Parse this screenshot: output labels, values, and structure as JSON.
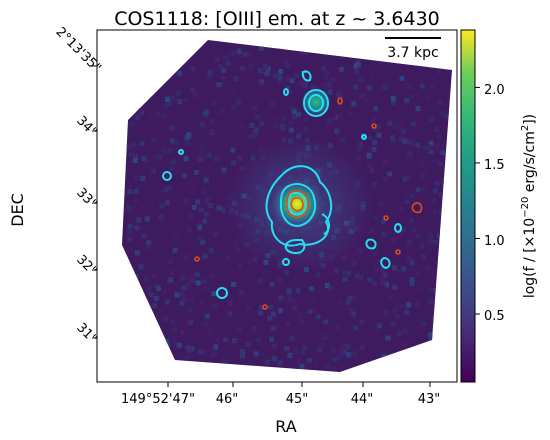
{
  "figure": {
    "title": "COS1118: [OIII] em. at z ~ 3.6430",
    "xlabel": "RA",
    "ylabel": "DEC",
    "scale_bar_label": "3.7 kpc",
    "ra_ticks": [
      "149°52'47\"",
      "46\"",
      "45\"",
      "44\"",
      "43\""
    ],
    "dec_ticks": [
      "2°13'35\"",
      "34\"",
      "33\"",
      "32\"",
      "31\""
    ]
  },
  "colorbar": {
    "label_prefix": "log(f / [×10",
    "label_exp": "−20",
    "label_suffix": " erg/s/cm",
    "label_exp2": "2",
    "label_close": "])",
    "ticks": [
      "0.5",
      "1.0",
      "1.5",
      "2.0"
    ],
    "tick_values": [
      0.5,
      1.0,
      1.5,
      2.0
    ],
    "range": [
      0.05,
      2.38
    ],
    "colormap": "viridis"
  },
  "colors": {
    "contour_cyan": "#22e1f2",
    "contour_red": "#e04c1c",
    "background": "#3e1a5e"
  }
}
